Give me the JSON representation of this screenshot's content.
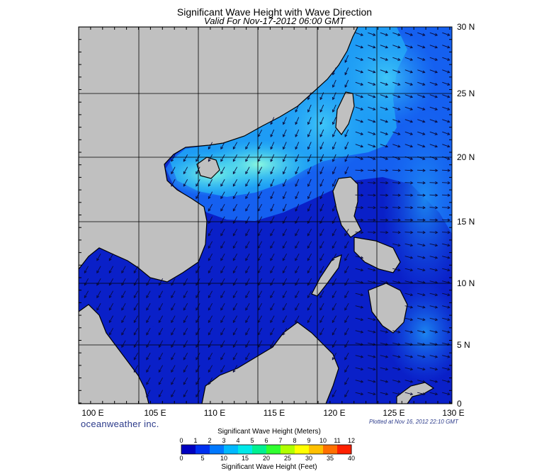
{
  "title": "Significant Wave Height with Wave Direction",
  "subtitle": "Valid For Nov-17-2012 06:00 GMT",
  "map": {
    "lon_labels": [
      "100 E",
      "105 E",
      "110 E",
      "115 E",
      "120 E",
      "125 E",
      "130 E"
    ],
    "lat_labels": [
      "30 N",
      "25 N",
      "20 N",
      "15 N",
      "10 N",
      "5 N",
      "0"
    ],
    "colors": {
      "land": "#c0c0c0",
      "border": "#000000",
      "sea_deep": "#0a20c8",
      "sea_mid": "#1560f0",
      "sea_light": "#1e9cf5",
      "sea_bright": "#35d8f5",
      "sea_peak": "#7af5e8",
      "arrow": "#0a0a3a"
    }
  },
  "brand": "oceanweather inc.",
  "plotted": "Plotted at Nov 16, 2012 22:10 GMT",
  "legend": {
    "title_meters": "Significant Wave Height (Meters)",
    "title_feet": "Significant Wave Height (Feet)",
    "meters_ticks": [
      "0",
      "1",
      "2",
      "3",
      "4",
      "5",
      "6",
      "7",
      "8",
      "9",
      "10",
      "11",
      "12"
    ],
    "feet_ticks": [
      "0",
      "5",
      "10",
      "15",
      "20",
      "25",
      "30",
      "35",
      "40"
    ],
    "colors": [
      "#0000c0",
      "#0030f0",
      "#0078ff",
      "#00b8ff",
      "#00e8e8",
      "#00f090",
      "#30ff30",
      "#b0ff00",
      "#ffff00",
      "#ffc000",
      "#ff7000",
      "#ff2000"
    ]
  }
}
